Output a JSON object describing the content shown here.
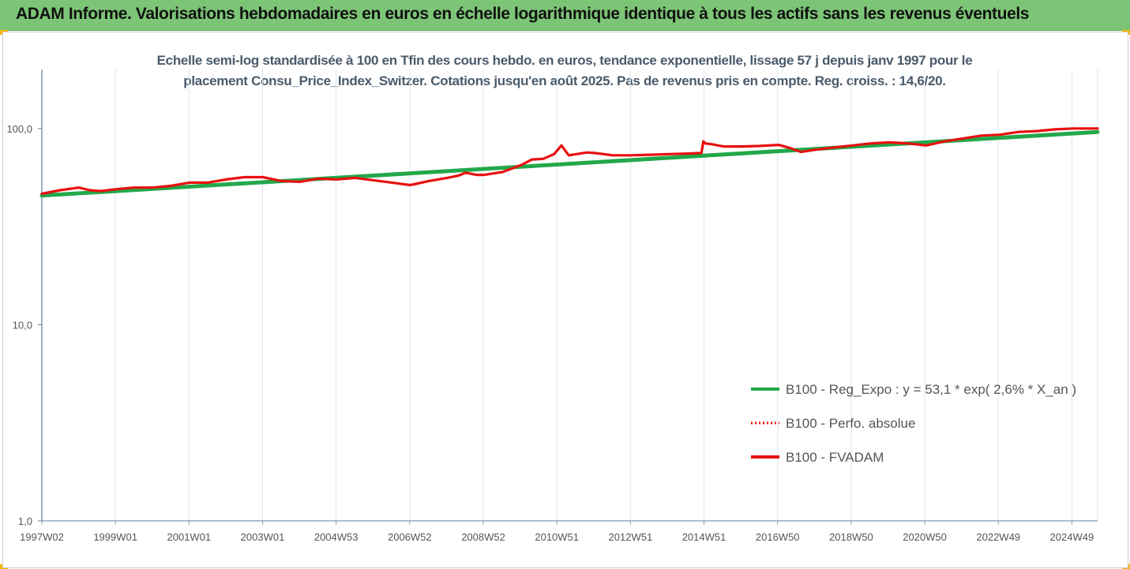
{
  "header": {
    "title": "ADAM Informe. Valorisations hebdomadaires en euros en échelle logarithmique identique à tous les actifs sans les revenus éventuels"
  },
  "chart_data": {
    "type": "line",
    "title_line1": "Echelle semi-log standardisée à 100 en Tfin des cours hebdo. en euros, tendance exponentielle, lissage 57 j depuis janv 1997 pour le",
    "title_line2": "placement Consu_Price_Index_Switzer. Cotations jusqu'en août 2025.  Pas de revenus pris en compte.  Reg. croiss. : 14,6/20.",
    "y_scale": "log",
    "ylim": [
      1,
      200
    ],
    "y_ticks": [
      1,
      10,
      100
    ],
    "y_tick_labels": [
      "1,0",
      "10,0",
      "100,0"
    ],
    "x_start": "1997W02",
    "x_end": "2025W35",
    "x_tick_labels": [
      "1997W02",
      "1999W01",
      "2001W01",
      "2003W01",
      "2004W53",
      "2006W52",
      "2008W52",
      "2010W51",
      "2012W51",
      "2014W51",
      "2016W50",
      "2018W50",
      "2020W50",
      "2022W49",
      "2024W49"
    ],
    "grid": "vertical",
    "legend_position": "bottom-right",
    "series": [
      {
        "name": "B100 - Reg_Expo : y = 53,1 * exp( 2,6% *  X_an )",
        "color": "#22a84a",
        "style": "solid",
        "x": [
          1997.0,
          2025.65
        ],
        "y": [
          45.5,
          96.0
        ]
      },
      {
        "name": "B100 - Perfo. absolue",
        "color": "#e81010",
        "style": "dotted",
        "x": [],
        "y": []
      },
      {
        "name": "B100 - FVADAM",
        "color": "#e81010",
        "style": "solid",
        "x": [
          1997.0,
          1997.5,
          1998.0,
          1998.3,
          1998.6,
          1999.0,
          1999.5,
          2000.0,
          2000.5,
          2001.0,
          2001.5,
          2002.0,
          2002.5,
          2003.0,
          2003.5,
          2004.0,
          2004.5,
          2005.0,
          2005.5,
          2006.0,
          2006.5,
          2007.0,
          2007.5,
          2008.0,
          2008.3,
          2008.5,
          2008.8,
          2009.0,
          2009.5,
          2010.0,
          2010.3,
          2010.6,
          2010.9,
          2011.1,
          2011.3,
          2011.5,
          2011.8,
          2012.0,
          2012.5,
          2013.0,
          2013.5,
          2014.0,
          2014.5,
          2014.9,
          2014.95,
          2015.0,
          2015.2,
          2015.5,
          2016.0,
          2016.5,
          2017.0,
          2017.3,
          2017.6,
          2018.0,
          2018.5,
          2019.0,
          2019.5,
          2020.0,
          2020.5,
          2021.0,
          2021.5,
          2022.0,
          2022.5,
          2023.0,
          2023.5,
          2024.0,
          2024.5,
          2025.0,
          2025.65
        ],
        "y": [
          46.5,
          48.5,
          50.0,
          48.5,
          48.0,
          49.0,
          50.0,
          50.0,
          51.0,
          53.0,
          53.0,
          55.0,
          56.5,
          56.5,
          54.0,
          53.5,
          55.5,
          55.0,
          56.0,
          54.5,
          53.0,
          51.5,
          54.0,
          56.0,
          57.5,
          59.5,
          58.0,
          58.0,
          60.0,
          65.0,
          69.5,
          70.0,
          74.0,
          82.0,
          73.0,
          74.0,
          75.5,
          75.0,
          73.0,
          73.0,
          73.5,
          74.0,
          74.5,
          75.0,
          86.0,
          84.0,
          83.0,
          81.0,
          81.0,
          81.5,
          82.5,
          79.5,
          76.0,
          78.0,
          80.0,
          82.0,
          84.0,
          85.0,
          84.0,
          82.0,
          86.0,
          89.0,
          92.0,
          93.0,
          96.0,
          97.0,
          99.0,
          100.0,
          100.0
        ]
      }
    ]
  }
}
